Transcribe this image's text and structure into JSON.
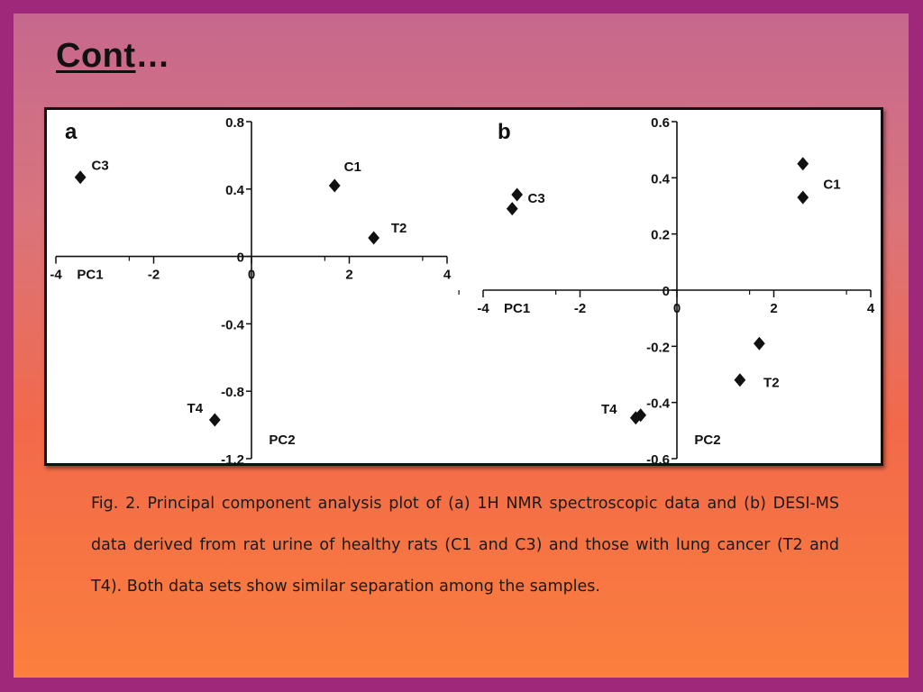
{
  "slide": {
    "title_underlined": "Cont",
    "title_rest": "…",
    "caption": "Fig. 2. Principal component analysis plot of (a) 1H NMR spectroscopic data and (b) DESI-MS data derived from rat urine of healthy rats (C1 and C3) and those with lung cancer (T2 and T4). Both data sets show similar separation among the samples.",
    "colors": {
      "frame": "#a0287a",
      "gradient_top": "#c6688e",
      "gradient_bottom": "#fb7f3d"
    }
  },
  "chart_data": [
    {
      "type": "scatter",
      "panel_label": "a",
      "xlabel": "PC1",
      "ylabel": "PC2",
      "xlim": [
        -4,
        4
      ],
      "ylim": [
        -1.2,
        0.8
      ],
      "xticks": [
        "-4",
        "-2",
        "0",
        "2",
        "4"
      ],
      "yticks": [
        "0.8",
        "0.4",
        "0",
        "-0.4",
        "-0.8",
        "-1.2"
      ],
      "points": [
        {
          "label": "C3",
          "x": -3.5,
          "y": 0.47
        },
        {
          "label": "C1",
          "x": 1.7,
          "y": 0.42
        },
        {
          "label": "T2",
          "x": 2.5,
          "y": 0.11
        },
        {
          "label": "T4",
          "x": -0.75,
          "y": -0.97
        }
      ]
    },
    {
      "type": "scatter",
      "panel_label": "b",
      "xlabel": "PC1",
      "ylabel": "PC2",
      "xlim": [
        -4,
        4
      ],
      "ylim": [
        -0.6,
        0.6
      ],
      "xticks": [
        "-4",
        "-2",
        "0",
        "2",
        "4"
      ],
      "yticks": [
        "0.6",
        "0.4",
        "0.2",
        "0",
        "-0.2",
        "-0.4",
        "-0.6"
      ],
      "points": [
        {
          "label": "C3",
          "x": -3.3,
          "y": 0.34
        },
        {
          "label": "C3",
          "x": -3.4,
          "y": 0.29
        },
        {
          "label": "C1",
          "x": 2.6,
          "y": 0.45
        },
        {
          "label": "C1",
          "x": 2.6,
          "y": 0.33
        },
        {
          "label": "T2",
          "x": 1.7,
          "y": -0.19
        },
        {
          "label": "T2",
          "x": 1.3,
          "y": -0.32
        },
        {
          "label": "T4",
          "x": -0.85,
          "y": -0.455
        },
        {
          "label": "T4",
          "x": -0.75,
          "y": -0.445
        }
      ],
      "point_labels": [
        {
          "text": "C3",
          "x": -2.9,
          "y": 0.33
        },
        {
          "text": "C1",
          "x": 3.2,
          "y": 0.38
        },
        {
          "text": "T2",
          "x": 1.95,
          "y": -0.325
        },
        {
          "text": "T4",
          "x": -1.4,
          "y": -0.42
        }
      ]
    }
  ]
}
